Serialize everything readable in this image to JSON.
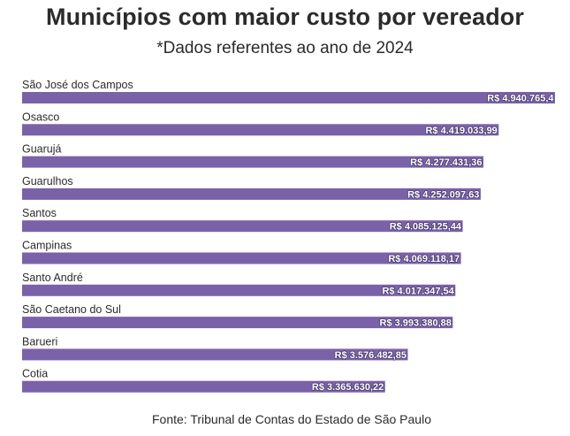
{
  "chart_data": {
    "type": "bar",
    "orientation": "horizontal",
    "title": "Municípios com maior custo por vereador",
    "subtitle": "*Dados referentes ao ano de 2024",
    "categories": [
      "São José dos Campos",
      "Osasco",
      "Guarujá",
      "Guarulhos",
      "Santos",
      "Campinas",
      "Santo André",
      "São Caetano do Sul",
      "Barueri",
      "Cotia"
    ],
    "values": [
      4940765.4,
      4419033.99,
      4277431.36,
      4252097.63,
      4085125.44,
      4069118.17,
      4017347.54,
      3993380.88,
      3576482.85,
      3365630.22
    ],
    "data_labels": [
      "R$ 4.940.765,4",
      "R$ 4.419.033,99",
      "R$ 4.277.431,36",
      "R$ 4.252.097,63",
      "R$ 4.085.125,44",
      "R$ 4.069.118,17",
      "R$ 4.017.347,54",
      "R$ 3.993.380,88",
      "R$ 3.576.482,85",
      "R$ 3.365.630,22"
    ],
    "xlim": [
      0,
      4940765.4
    ],
    "grid": false,
    "bar_color": "#7a62a8",
    "source": "Fonte: Tribunal de Contas do Estado de São Paulo"
  }
}
